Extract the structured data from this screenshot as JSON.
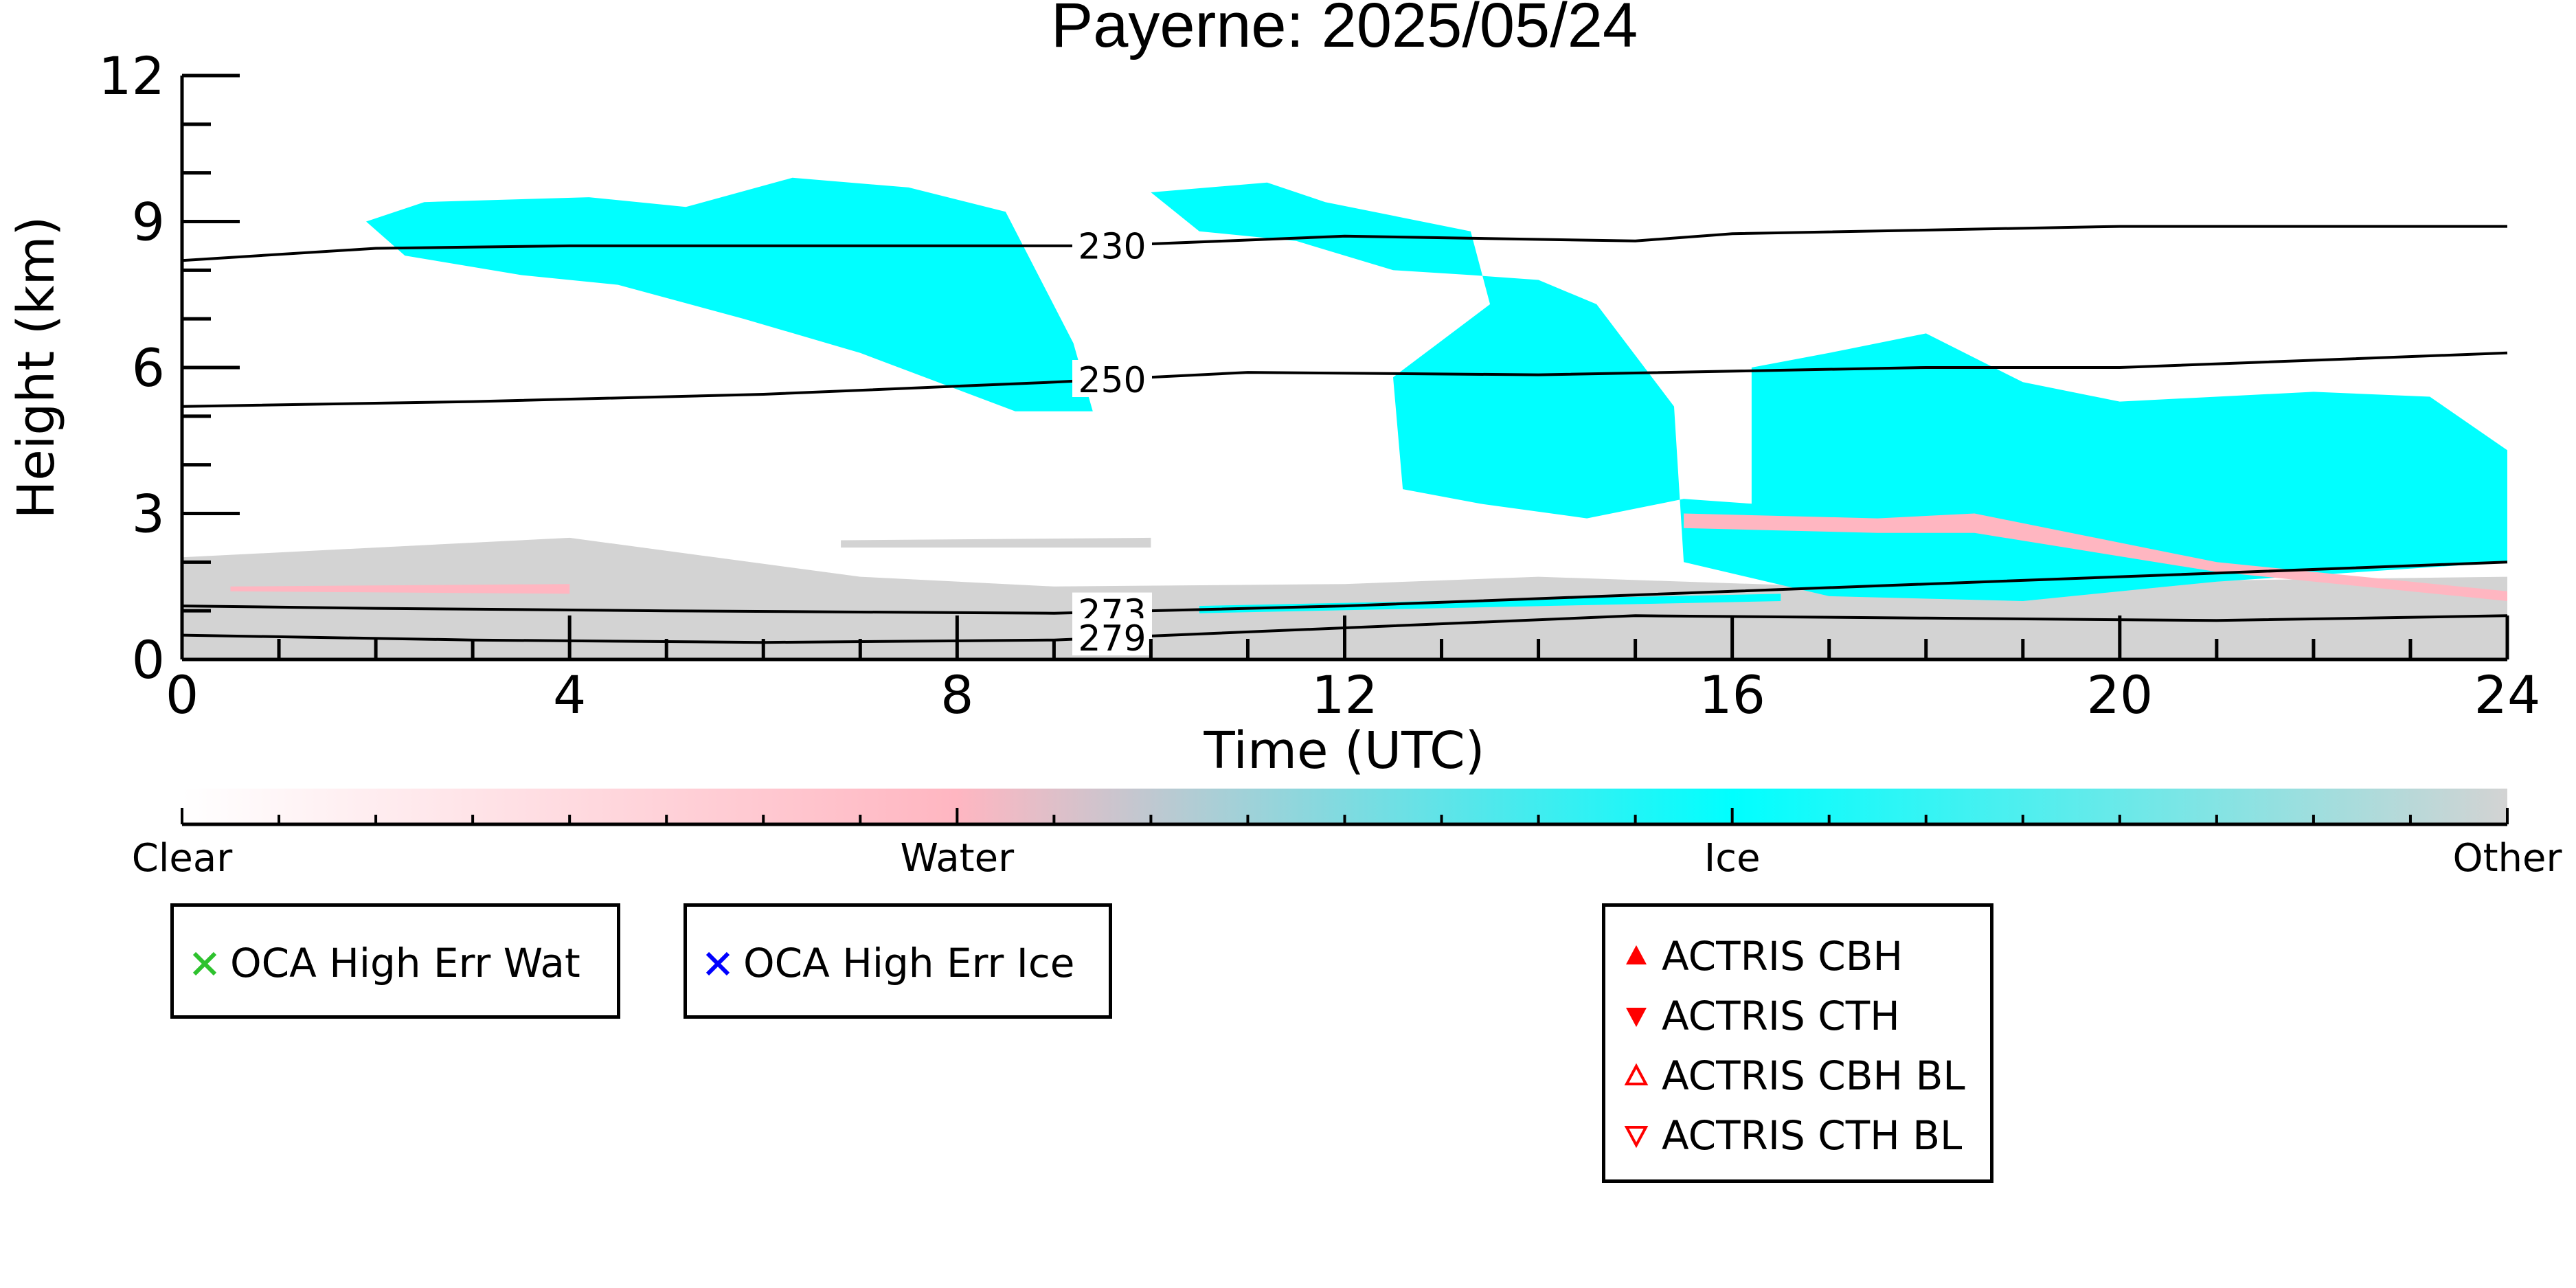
{
  "chart_data": {
    "type": "heatmap",
    "title": "Payerne: 2025/05/24",
    "xlabel": "Time (UTC)",
    "ylabel": "Height (km)",
    "xlim": [
      0,
      24
    ],
    "ylim": [
      0,
      12
    ],
    "xticks": [
      "0",
      "4",
      "8",
      "12",
      "16",
      "20",
      "24"
    ],
    "yticks": [
      "0",
      "3",
      "6",
      "9",
      "12"
    ],
    "colorbar": {
      "labels": [
        "Clear",
        "Water",
        "Ice",
        "Other"
      ],
      "stops": [
        "#ffffff",
        "#ffb6c1",
        "#00ffff",
        "#d3d3d3"
      ]
    },
    "isotherms": [
      {
        "label": "230",
        "label_x": 9.6,
        "points": [
          [
            0,
            8.2
          ],
          [
            2,
            8.45
          ],
          [
            4,
            8.5
          ],
          [
            8,
            8.5
          ],
          [
            9.5,
            8.5
          ],
          [
            12,
            8.7
          ],
          [
            15,
            8.6
          ],
          [
            16,
            8.75
          ],
          [
            20,
            8.9
          ],
          [
            24,
            8.9
          ]
        ]
      },
      {
        "label": "250",
        "label_x": 9.6,
        "points": [
          [
            0,
            5.2
          ],
          [
            3,
            5.3
          ],
          [
            6,
            5.45
          ],
          [
            9,
            5.7
          ],
          [
            11,
            5.9
          ],
          [
            14,
            5.85
          ],
          [
            18,
            6.0
          ],
          [
            20,
            6.0
          ],
          [
            24,
            6.3
          ]
        ]
      },
      {
        "label": "273",
        "label_x": 9.6,
        "points": [
          [
            0,
            1.1
          ],
          [
            2,
            1.05
          ],
          [
            5,
            1.0
          ],
          [
            9,
            0.95
          ],
          [
            12,
            1.1
          ],
          [
            16,
            1.4
          ],
          [
            20,
            1.7
          ],
          [
            24,
            2.0
          ]
        ]
      },
      {
        "label": "279",
        "label_x": 9.6,
        "points": [
          [
            0,
            0.5
          ],
          [
            3,
            0.4
          ],
          [
            6,
            0.35
          ],
          [
            9,
            0.4
          ],
          [
            12,
            0.65
          ],
          [
            15,
            0.9
          ],
          [
            18,
            0.85
          ],
          [
            21,
            0.8
          ],
          [
            24,
            0.9
          ]
        ]
      }
    ],
    "cloud_regions": [
      {
        "class": "Other",
        "color": "#d3d3d3",
        "polygon": [
          [
            0,
            0
          ],
          [
            0,
            2.1
          ],
          [
            2,
            2.3
          ],
          [
            4,
            2.5
          ],
          [
            5.5,
            2.1
          ],
          [
            7,
            1.7
          ],
          [
            9,
            1.5
          ],
          [
            12,
            1.55
          ],
          [
            14,
            1.7
          ],
          [
            17,
            1.5
          ],
          [
            20,
            1.6
          ],
          [
            24,
            1.7
          ],
          [
            24,
            0
          ]
        ]
      },
      {
        "class": "Other",
        "color": "#d3d3d3",
        "polygon": [
          [
            6.8,
            2.45
          ],
          [
            10,
            2.5
          ],
          [
            10,
            2.3
          ],
          [
            6.8,
            2.3
          ]
        ]
      },
      {
        "class": "Water",
        "color": "#ffb6c1",
        "polygon": [
          [
            0.5,
            1.5
          ],
          [
            4,
            1.55
          ],
          [
            4,
            1.35
          ],
          [
            0.5,
            1.4
          ]
        ]
      },
      {
        "class": "Ice",
        "color": "#00ffff",
        "polygon": [
          [
            1.9,
            9.0
          ],
          [
            2.5,
            9.4
          ],
          [
            4.2,
            9.5
          ],
          [
            5.2,
            9.3
          ],
          [
            6.3,
            9.9
          ],
          [
            7.5,
            9.7
          ],
          [
            8.5,
            9.2
          ],
          [
            9.2,
            6.5
          ],
          [
            9.4,
            5.1
          ],
          [
            8.6,
            5.1
          ],
          [
            7.0,
            6.3
          ],
          [
            5.8,
            7.0
          ],
          [
            4.5,
            7.7
          ],
          [
            3.5,
            7.9
          ],
          [
            2.3,
            8.3
          ]
        ]
      },
      {
        "class": "Ice",
        "color": "#00ffff",
        "polygon": [
          [
            10.0,
            9.6
          ],
          [
            11.2,
            9.8
          ],
          [
            11.8,
            9.4
          ],
          [
            13.3,
            8.8
          ],
          [
            13.5,
            7.3
          ],
          [
            12.9,
            6.4
          ],
          [
            12.5,
            5.8
          ],
          [
            12.6,
            3.5
          ],
          [
            13.4,
            3.2
          ],
          [
            14.5,
            2.9
          ],
          [
            15.5,
            3.3
          ],
          [
            16.2,
            3.2
          ],
          [
            16.2,
            6.0
          ],
          [
            17.0,
            6.3
          ],
          [
            18.0,
            6.7
          ],
          [
            19.0,
            5.7
          ],
          [
            20.0,
            5.3
          ],
          [
            22.0,
            5.5
          ],
          [
            23.2,
            5.4
          ],
          [
            24.0,
            4.3
          ],
          [
            24.0,
            2.0
          ],
          [
            21.0,
            1.6
          ],
          [
            19.0,
            1.2
          ],
          [
            17.0,
            1.3
          ],
          [
            15.5,
            2.0
          ],
          [
            15.4,
            5.2
          ],
          [
            14.6,
            7.3
          ],
          [
            14.0,
            7.8
          ],
          [
            13.3,
            7.9
          ],
          [
            12.5,
            8.0
          ],
          [
            11.5,
            8.6
          ],
          [
            10.5,
            8.8
          ]
        ]
      },
      {
        "class": "Water",
        "color": "#ffb6c1",
        "polygon": [
          [
            15.5,
            3.0
          ],
          [
            17.5,
            2.9
          ],
          [
            18.5,
            3.0
          ],
          [
            21,
            2.0
          ],
          [
            24,
            1.4
          ],
          [
            24,
            1.2
          ],
          [
            21,
            1.8
          ],
          [
            18.5,
            2.6
          ],
          [
            17.5,
            2.6
          ],
          [
            15.5,
            2.7
          ]
        ]
      },
      {
        "class": "Ice",
        "color": "#00ffff",
        "polygon": [
          [
            10.5,
            1.1
          ],
          [
            16.5,
            1.35
          ],
          [
            16.5,
            1.2
          ],
          [
            10.5,
            0.95
          ]
        ]
      }
    ]
  },
  "legends": [
    {
      "title": "oca-legend-water",
      "items": [
        {
          "label": "OCA High Err Wat",
          "symbol": "x-icon",
          "color": "#2ec22e"
        }
      ]
    },
    {
      "title": "oca-legend-ice",
      "items": [
        {
          "label": "OCA High Err Ice",
          "symbol": "x-icon",
          "color": "#0000ff"
        }
      ]
    },
    {
      "title": "actris-legend",
      "items": [
        {
          "label": "ACTRIS CBH",
          "symbol": "triangle-up-filled-icon",
          "color": "#ff0000"
        },
        {
          "label": "ACTRIS CTH",
          "symbol": "triangle-down-filled-icon",
          "color": "#ff0000"
        },
        {
          "label": "ACTRIS CBH BL",
          "symbol": "triangle-up-open-icon",
          "color": "#ff0000"
        },
        {
          "label": "ACTRIS CTH BL",
          "symbol": "triangle-down-open-icon",
          "color": "#ff0000"
        }
      ]
    }
  ]
}
